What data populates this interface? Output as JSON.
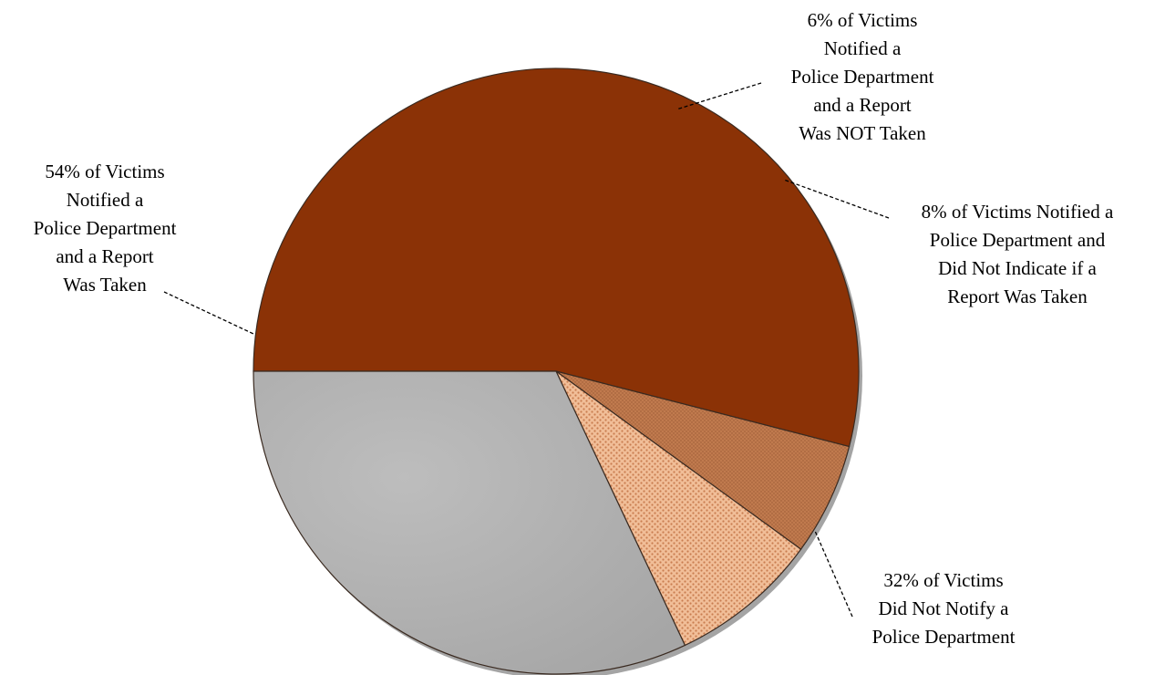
{
  "chart_data": {
    "type": "pie",
    "title": "",
    "start_angle_deg": 180,
    "direction": "clockwise",
    "slices": [
      {
        "label": "54% of Victims Notified a Police Department and a Report Was Taken",
        "label_lines": [
          "54% of Victims",
          "Notified a",
          "Police Department",
          "and a Report",
          "Was Taken"
        ],
        "value": 54,
        "color": "#8b3206",
        "pattern": "solid"
      },
      {
        "label": "6% of Victims Notified a Police Department and a Report Was NOT Taken",
        "label_lines": [
          "6% of Victims",
          "Notified a",
          "Police Department",
          "and a Report",
          "Was NOT Taken"
        ],
        "value": 6,
        "color": "#c07a4e",
        "pattern": "fine-dots"
      },
      {
        "label": "8% of Victims Notified a Police Department and Did Not Indicate if a Report Was Taken",
        "label_lines": [
          "8% of Victims Notified a",
          "Police Department and",
          "Did Not Indicate if a",
          "Report Was Taken"
        ],
        "value": 8,
        "color": "#e8ad84",
        "pattern": "coarse-dots"
      },
      {
        "label": "32% of Victims Did Not Notify a Police Department",
        "label_lines": [
          "32% of Victims",
          "Did Not Notify a",
          "Police Department"
        ],
        "value": 32,
        "color": "#acacac",
        "pattern": "solid"
      }
    ]
  }
}
